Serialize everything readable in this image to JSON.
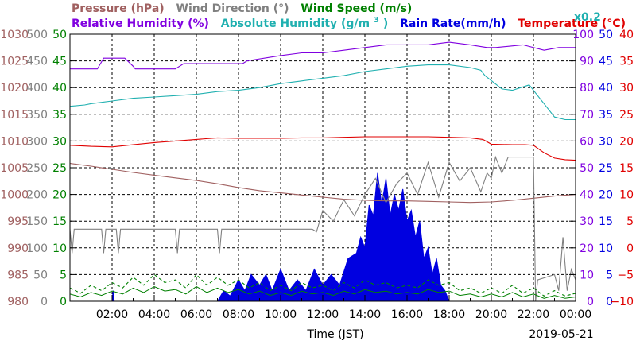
{
  "chart_data": {
    "type": "line",
    "date": "2019-05-21",
    "xlabel": "Time (JST)",
    "x_ticks": [
      "02:00",
      "04:00",
      "06:00",
      "08:00",
      "10:00",
      "12:00",
      "14:00",
      "16:00",
      "18:00",
      "20:00",
      "22:00",
      "00:00"
    ],
    "legend": {
      "pressure": "Pressure (hPa)",
      "wind_direction": "Wind Direction (°)",
      "wind_speed": "Wind Speed (m/s)",
      "relative_humidity": "Relative Humidity (%)",
      "absolute_humidity_main": "Absolute Humidity (g/m",
      "absolute_humidity_sup": "3",
      "absolute_humidity_end": ")",
      "rain_rate": "Rain Rate(mm/h)",
      "temperature": "Temperature (°C)",
      "scale_note": "x0.2"
    },
    "colors": {
      "pressure": "#a06060",
      "wind_direction": "#808080",
      "wind_speed": "#008000",
      "relative_humidity": "#8000e0",
      "absolute_humidity": "#20b0b0",
      "rain_rate": "#0000e0",
      "temperature": "#e00000"
    },
    "axes": {
      "pressure": {
        "ticks": [
          "1030",
          "1025",
          "1020",
          "1015",
          "1010",
          "1005",
          "1000",
          "995",
          "990",
          "985",
          "980"
        ],
        "range": [
          980,
          1030
        ]
      },
      "wind_direction": {
        "ticks": [
          "500",
          "450",
          "400",
          "350",
          "300",
          "250",
          "200",
          "150",
          "100",
          "50",
          "0"
        ],
        "range": [
          0,
          500
        ]
      },
      "wind_speed": {
        "ticks": [
          "50",
          "45",
          "40",
          "35",
          "30",
          "25",
          "20",
          "15",
          "10",
          "5",
          "0"
        ],
        "range": [
          0,
          50
        ]
      },
      "relative_humidity": {
        "ticks": [
          "100",
          "90",
          "80",
          "70",
          "60",
          "50",
          "40",
          "30",
          "20",
          "10",
          "0"
        ],
        "range": [
          0,
          100
        ]
      },
      "rain_rate": {
        "ticks": [
          "50",
          "45",
          "40",
          "35",
          "30",
          "25",
          "20",
          "15",
          "10",
          "5",
          "0"
        ],
        "range": [
          0,
          50
        ]
      },
      "temperature": {
        "ticks": [
          "40",
          "35",
          "30",
          "25",
          "20",
          "15",
          "10",
          "5",
          "0",
          "−5",
          "−10"
        ],
        "range": [
          -10,
          40
        ]
      }
    },
    "series": [
      {
        "name": "Pressure (hPa)",
        "axis": "pressure",
        "x": [
          0,
          1,
          2,
          3,
          4,
          5,
          6,
          7,
          8,
          9,
          10,
          11,
          12,
          13,
          14,
          15,
          16,
          17,
          18,
          19,
          20,
          21,
          22,
          23,
          24
        ],
        "y": [
          1005.8,
          1005.3,
          1004.7,
          1004.1,
          1003.6,
          1003.1,
          1002.6,
          1002.0,
          1001.3,
          1000.7,
          1000.3,
          999.9,
          999.5,
          999.1,
          998.9,
          998.8,
          998.8,
          998.7,
          998.6,
          998.5,
          998.6,
          998.9,
          999.3,
          999.7,
          1000.0
        ]
      },
      {
        "name": "Relative Humidity (%)",
        "axis": "relative_humidity",
        "x": [
          0,
          1.3,
          1.6,
          2.6,
          3,
          3.1,
          5,
          5.4,
          7,
          8.2,
          8.4,
          10,
          11,
          12,
          13,
          14,
          15,
          16,
          17,
          18,
          19,
          19.8,
          20.2,
          21.5,
          22.5,
          23.2,
          24
        ],
        "y": [
          87,
          87,
          91,
          91,
          88,
          87,
          87,
          89,
          89,
          89,
          90,
          92,
          93,
          93,
          94,
          95,
          96,
          96,
          96,
          97,
          96,
          95,
          95,
          96,
          94,
          95,
          95
        ]
      },
      {
        "name": "Absolute Humidity (g/m3) x0.2",
        "axis": "relative_humidity",
        "x": [
          0,
          0.7,
          1,
          2,
          3,
          4,
          5,
          6,
          7,
          8,
          9,
          10,
          11,
          12,
          13,
          14,
          15,
          16,
          17,
          18,
          19,
          19.5,
          19.7,
          20.5,
          21,
          21.4,
          21.8,
          22.2,
          22.6,
          23,
          23.5,
          24
        ],
        "y": [
          73,
          73.5,
          74,
          75,
          76,
          76.5,
          77,
          77.5,
          78.5,
          79,
          80,
          81.5,
          82.5,
          83.5,
          84.5,
          86,
          87,
          88,
          88.5,
          88.5,
          87.5,
          86.5,
          84.5,
          79.5,
          79,
          80,
          81,
          77,
          73,
          69,
          68,
          68
        ]
      },
      {
        "name": "Temperature (°C)",
        "axis": "temperature",
        "x": [
          0,
          1,
          2,
          3,
          4,
          5,
          6,
          7,
          8,
          9,
          10,
          11,
          12,
          13,
          14,
          15,
          16,
          17,
          18,
          19,
          19.6,
          20,
          21,
          21.6,
          22,
          22.5,
          23,
          23.5,
          24
        ],
        "y": [
          19.2,
          19.0,
          18.9,
          19.3,
          19.7,
          20.0,
          20.3,
          20.6,
          20.5,
          20.5,
          20.5,
          20.6,
          20.6,
          20.7,
          20.8,
          20.8,
          20.8,
          20.8,
          20.7,
          20.6,
          20.3,
          19.4,
          19.3,
          19.3,
          19.2,
          17.8,
          16.8,
          16.5,
          16.4
        ]
      },
      {
        "name": "Wind Direction (°)",
        "axis": "wind_direction",
        "x": [
          0,
          0.1,
          0.2,
          0.5,
          1.5,
          1.6,
          1.7,
          2.2,
          2.3,
          2.4,
          5,
          5.1,
          5.2,
          7,
          7.1,
          7.2,
          9,
          9.2,
          9.3,
          11.5,
          11.7,
          12,
          12.5,
          13,
          13.5,
          14,
          14.5,
          15,
          15.5,
          16,
          16.5,
          17,
          17.5,
          18,
          18.5,
          19,
          19.5,
          19.8,
          20,
          20.2,
          20.5,
          20.8,
          21,
          21.5,
          22,
          22.1,
          22.2,
          23,
          23.2,
          23.4,
          23.6,
          23.8,
          24
        ],
        "y": [
          135,
          90,
          135,
          135,
          135,
          90,
          135,
          135,
          90,
          135,
          135,
          90,
          135,
          135,
          90,
          135,
          135,
          135,
          135,
          135,
          130,
          170,
          150,
          190,
          160,
          200,
          230,
          185,
          220,
          240,
          200,
          260,
          195,
          260,
          225,
          250,
          205,
          240,
          230,
          270,
          240,
          270,
          270,
          270,
          270,
          0,
          40,
          50,
          20,
          120,
          20,
          60,
          40
        ]
      },
      {
        "name": "Wind Speed (m/s)",
        "axis": "wind_speed",
        "x": [
          0,
          0.5,
          1,
          1.5,
          2,
          2.5,
          3,
          3.5,
          4,
          4.5,
          5,
          5.5,
          6,
          6.5,
          7,
          7.5,
          8,
          8.5,
          9,
          9.5,
          10,
          10.5,
          11,
          11.5,
          12,
          12.5,
          13,
          13.5,
          14,
          14.5,
          15,
          15.5,
          16,
          16.5,
          17,
          17.5,
          18,
          18.5,
          19,
          19.5,
          20,
          20.5,
          21,
          21.5,
          22,
          22.5,
          23,
          23.5,
          24
        ],
        "y": [
          2.5,
          1.5,
          3,
          2,
          3.5,
          2.5,
          4.5,
          3,
          5,
          3.5,
          4,
          2.5,
          5,
          3,
          4.5,
          3,
          4,
          2.5,
          3.5,
          2,
          3,
          2,
          3.5,
          2.5,
          3,
          2,
          3.5,
          2.5,
          4,
          3,
          3.5,
          2.5,
          3,
          2.5,
          4,
          3,
          3.5,
          2,
          2.5,
          1.5,
          2.5,
          1.5,
          3,
          1.5,
          2.5,
          1,
          2,
          1,
          1.5
        ]
      },
      {
        "name": "Rain Rate(mm/h)",
        "axis": "rain_rate",
        "x": [
          0,
          2,
          2.05,
          2.1,
          7,
          7.3,
          7.6,
          8,
          8.3,
          8.6,
          9,
          9.3,
          9.6,
          10,
          10.4,
          10.8,
          11.2,
          11.6,
          12,
          12.4,
          12.8,
          13.2,
          13.6,
          13.8,
          14,
          14.2,
          14.4,
          14.6,
          14.8,
          15,
          15.2,
          15.4,
          15.6,
          15.8,
          16,
          16.2,
          16.4,
          16.6,
          16.8,
          17,
          17.2,
          17.4,
          17.6,
          17.8,
          18,
          24
        ],
        "y": [
          0,
          0,
          2,
          0,
          0,
          2,
          1,
          4,
          2,
          5,
          3,
          5,
          2,
          6,
          2,
          4,
          2,
          6,
          3,
          5,
          3,
          8,
          9,
          12,
          10,
          18,
          16,
          24,
          18,
          23,
          16,
          20,
          17,
          21,
          15,
          17,
          12,
          15,
          8,
          10,
          5,
          8,
          3,
          2,
          0,
          0
        ]
      }
    ]
  }
}
